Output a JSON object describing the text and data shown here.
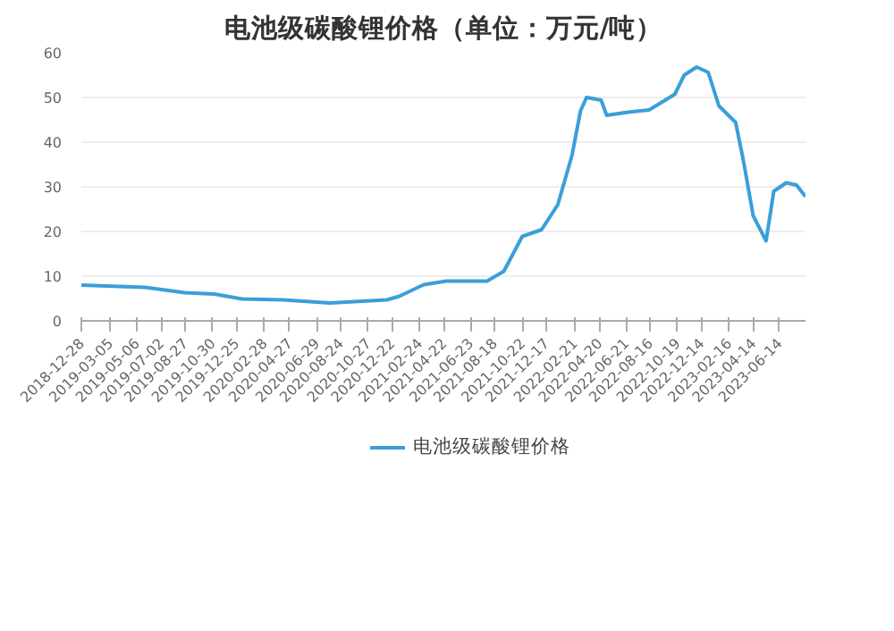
{
  "chart_data": {
    "type": "line",
    "title": "电池级碳酸锂价格（单位：万元/吨）",
    "x": [
      "2018-12-28",
      "2019-05-26",
      "2019-08-27",
      "2019-11-03",
      "2020-01-07",
      "2020-04-12",
      "2020-07-30",
      "2020-12-10",
      "2021-01-08",
      "2021-03-06",
      "2021-04-28",
      "2021-08-01",
      "2021-09-09",
      "2021-10-22",
      "2021-12-06",
      "2022-01-13",
      "2022-02-15",
      "2022-03-07",
      "2022-03-21",
      "2022-04-24",
      "2022-05-07",
      "2022-06-26",
      "2022-08-14",
      "2022-10-13",
      "2022-11-04",
      "2022-12-03",
      "2022-12-30",
      "2023-01-24",
      "2023-03-04",
      "2023-03-22",
      "2023-04-14",
      "2023-05-14",
      "2023-06-01",
      "2023-06-30",
      "2023-07-24",
      "2023-08-14"
    ],
    "series": [
      {
        "name": "电池级碳酸锂价格",
        "color": "#3a9fd9",
        "values": [
          8.0,
          7.5,
          6.3,
          6.0,
          4.9,
          4.7,
          4.0,
          4.7,
          5.5,
          8.1,
          8.9,
          8.9,
          11.1,
          18.9,
          20.4,
          26,
          37,
          47,
          50,
          49.4,
          46,
          46.7,
          47.2,
          50.7,
          55,
          56.8,
          55.6,
          48.1,
          44.4,
          35.9,
          23.5,
          17.9,
          29,
          30.9,
          30.4,
          27.8
        ]
      }
    ],
    "xlim": [
      "2018-12-28",
      "2023-08-14"
    ],
    "xticks": [
      "2018-12-28",
      "2019-03-05",
      "2019-05-06",
      "2019-07-02",
      "2019-08-27",
      "2019-10-30",
      "2019-12-25",
      "2020-02-28",
      "2020-04-27",
      "2020-06-29",
      "2020-08-24",
      "2020-10-27",
      "2020-12-22",
      "2021-02-24",
      "2021-04-22",
      "2021-06-23",
      "2021-08-18",
      "2021-10-22",
      "2021-12-17",
      "2022-02-21",
      "2022-04-20",
      "2022-06-21",
      "2022-08-16",
      "2022-10-19",
      "2022-12-14",
      "2023-02-16",
      "2023-04-14",
      "2023-06-14"
    ],
    "ylim": [
      0,
      60
    ],
    "yticks": [
      0,
      10,
      20,
      30,
      40,
      50,
      60
    ],
    "grid": "y",
    "legend": "bottom",
    "marker": "none",
    "line_style": "solid"
  }
}
